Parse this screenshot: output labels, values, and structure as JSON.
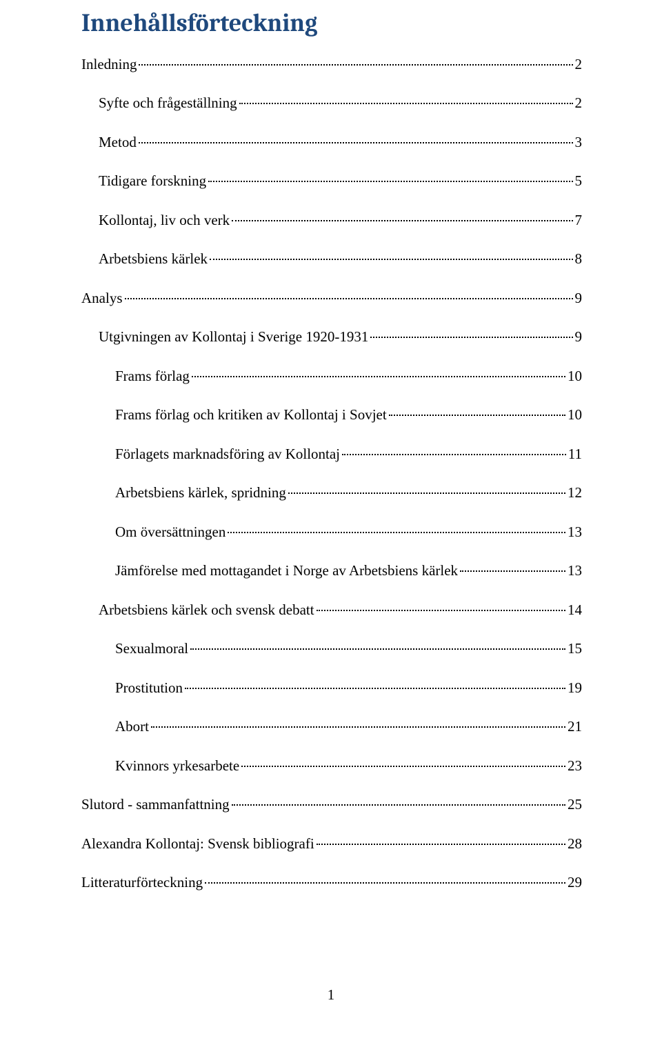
{
  "colors": {
    "title": "#1f497d",
    "text": "#000000",
    "background": "#ffffff",
    "leader": "#000000"
  },
  "typography": {
    "title_font_family": "Cambria",
    "title_font_size_pt": 27,
    "title_font_weight": "bold",
    "body_font_family": "Times New Roman",
    "body_font_size_pt": 16
  },
  "title": "Innehållsförteckning",
  "entries": [
    {
      "label": "Inledning",
      "page": "2",
      "indent": 0
    },
    {
      "label": "Syfte och frågeställning",
      "page": "2",
      "indent": 1
    },
    {
      "label": "Metod",
      "page": "3",
      "indent": 1
    },
    {
      "label": "Tidigare forskning",
      "page": "5",
      "indent": 1
    },
    {
      "label": "Kollontaj, liv och verk",
      "page": "7",
      "indent": 1
    },
    {
      "label": "Arbetsbiens kärlek",
      "page": "8",
      "indent": 1
    },
    {
      "label": "Analys",
      "page": "9",
      "indent": 0
    },
    {
      "label": "Utgivningen av Kollontaj i Sverige 1920-1931",
      "page": "9",
      "indent": 1
    },
    {
      "label": "Frams förlag",
      "page": "10",
      "indent": 2
    },
    {
      "label": "Frams förlag och kritiken av Kollontaj i Sovjet",
      "page": "10",
      "indent": 2
    },
    {
      "label": "Förlagets marknadsföring av Kollontaj",
      "page": "11",
      "indent": 2
    },
    {
      "label": "Arbetsbiens kärlek, spridning",
      "page": "12",
      "indent": 2
    },
    {
      "label": "Om översättningen",
      "page": "13",
      "indent": 2
    },
    {
      "label": "Jämförelse med mottagandet i Norge av Arbetsbiens kärlek",
      "page": "13",
      "indent": 2
    },
    {
      "label": "Arbetsbiens kärlek och svensk debatt",
      "page": "14",
      "indent": 1
    },
    {
      "label": "Sexualmoral",
      "page": "15",
      "indent": 2
    },
    {
      "label": "Prostitution",
      "page": "19",
      "indent": 2
    },
    {
      "label": "Abort",
      "page": "21",
      "indent": 2
    },
    {
      "label": "Kvinnors yrkesarbete",
      "page": "23",
      "indent": 2
    },
    {
      "label": "Slutord - sammanfattning",
      "page": "25",
      "indent": 0
    },
    {
      "label": "Alexandra Kollontaj: Svensk bibliografi",
      "page": "28",
      "indent": 0
    },
    {
      "label": "Litteraturförteckning",
      "page": "29",
      "indent": 0
    }
  ],
  "page_number": "1"
}
